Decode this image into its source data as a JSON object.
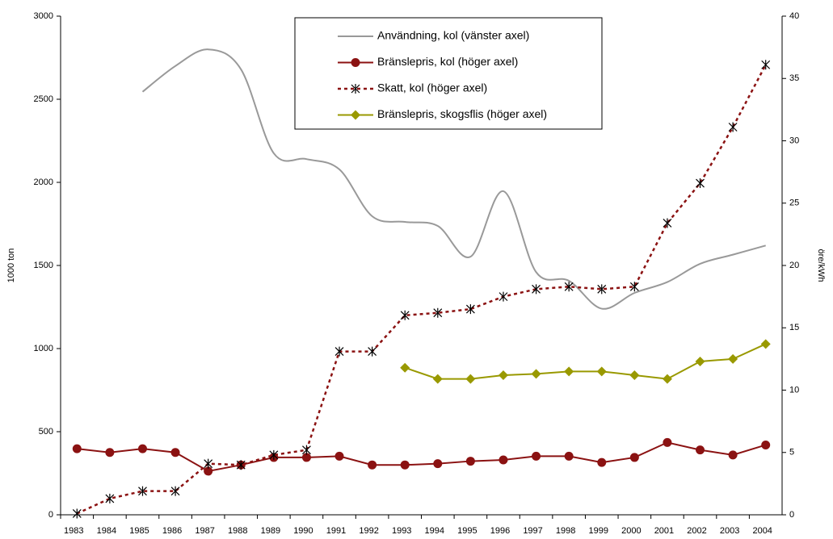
{
  "chart_data": {
    "type": "line",
    "categories": [
      "1983",
      "1984",
      "1985",
      "1986",
      "1987",
      "1988",
      "1989",
      "1990",
      "1991",
      "1992",
      "1993",
      "1994",
      "1995",
      "1996",
      "1997",
      "1998",
      "1999",
      "2000",
      "2001",
      "2002",
      "2003",
      "2004"
    ],
    "ylabel": "1000 ton",
    "y2label": "öre/kWh",
    "ylim": [
      0,
      3000
    ],
    "yticks": [
      0,
      500,
      1000,
      1500,
      2000,
      2500,
      3000
    ],
    "y2lim": [
      0,
      40
    ],
    "y2ticks": [
      0,
      5,
      10,
      15,
      20,
      25,
      30,
      35,
      40
    ],
    "series": [
      {
        "name": "Användning, kol (vänster axel)",
        "color": "#999999",
        "smooth": true,
        "marker": "none",
        "dashed": false,
        "values": [
          null,
          null,
          2545,
          2700,
          2800,
          2680,
          2175,
          2140,
          2078,
          1796,
          1762,
          1738,
          1553,
          1947,
          1460,
          1408,
          1240,
          1335,
          1400,
          1510,
          1565,
          1620
        ]
      },
      {
        "name": "Bränslepris, kol (höger axel)",
        "color": "#8b1212",
        "axis": "y2",
        "marker": "circle",
        "dashed": false,
        "values": [
          5.3,
          5.0,
          5.3,
          5.0,
          3.5,
          4.0,
          4.6,
          4.6,
          4.7,
          4.0,
          4.0,
          4.1,
          4.3,
          4.4,
          4.7,
          4.7,
          4.2,
          4.6,
          5.8,
          5.2,
          4.8,
          5.6
        ]
      },
      {
        "name": "Skatt, kol (höger axel)",
        "color": "#8b1212",
        "axis": "y2",
        "marker": "star",
        "dashed": true,
        "values": [
          0.1,
          1.3,
          1.9,
          1.9,
          4.1,
          4.0,
          4.8,
          5.2,
          13.1,
          13.1,
          16.0,
          16.2,
          16.5,
          17.5,
          18.1,
          18.3,
          18.1,
          18.3,
          23.4,
          26.6,
          31.1,
          36.1
        ]
      },
      {
        "name": "Bränslepris, skogsflis (höger axel)",
        "color": "#999900",
        "axis": "y2",
        "marker": "diamond",
        "dashed": false,
        "values": [
          null,
          null,
          null,
          null,
          null,
          null,
          null,
          null,
          null,
          null,
          11.8,
          10.9,
          10.9,
          11.2,
          11.3,
          11.5,
          11.5,
          11.2,
          10.9,
          12.3,
          12.5,
          13.7
        ]
      }
    ]
  }
}
